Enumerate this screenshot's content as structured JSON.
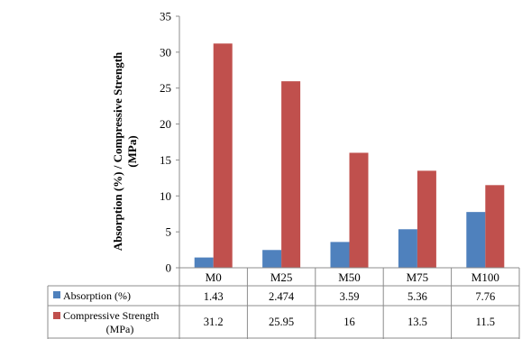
{
  "chart_data": {
    "type": "bar",
    "ylabel_line1": "Absorption (%) / Compressive Strength",
    "ylabel_line2": "(MPa)",
    "ylim": [
      0,
      35
    ],
    "y_ticks": [
      "0",
      "5",
      "10",
      "15",
      "20",
      "25",
      "30",
      "35"
    ],
    "categories": [
      "M0",
      "M25",
      "M50",
      "M75",
      "M100"
    ],
    "series": [
      {
        "name": "Absorption (%)",
        "color": "#4F81BD",
        "values": [
          1.43,
          2.474,
          3.59,
          5.36,
          7.76
        ],
        "table_values": [
          "1.43",
          "2.474",
          "3.59",
          "5.36",
          "7.76"
        ]
      },
      {
        "name_line1": "Compressive Strength",
        "name_line2": "(MPa)",
        "color": "#C0504D",
        "values": [
          31.2,
          25.95,
          16,
          13.5,
          11.5
        ],
        "table_values": [
          "31.2",
          "25.95",
          "16",
          "13.5",
          "11.5"
        ]
      }
    ],
    "grid": false,
    "legend": "data-table"
  }
}
